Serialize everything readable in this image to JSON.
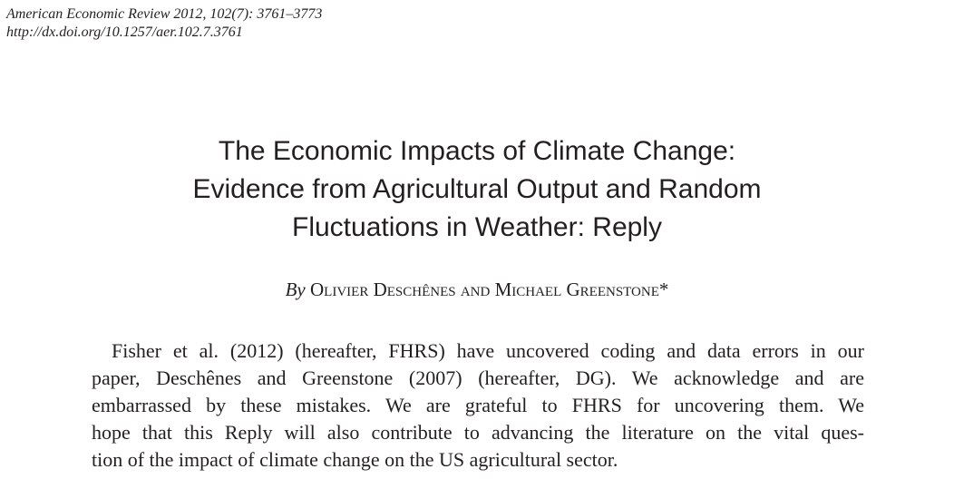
{
  "header": {
    "journal_line": "American Economic Review 2012, 102(7): 3761–3773",
    "doi_line": "http://dx.doi.org/10.1257/aer.102.7.3761"
  },
  "title": {
    "line1": "The Economic Impacts of Climate Change:",
    "line2": "Evidence from Agricultural Output and Random",
    "line3": "Fluctuations in Weather: Reply"
  },
  "byline": {
    "by": "By",
    "authors": "Olivier Deschênes and Michael Greenstone",
    "footnote_mark": "*"
  },
  "body": {
    "lines": [
      "Fisher et al. (2012) (hereafter, FHRS) have uncovered coding and data errors in our",
      "paper, Deschênes and Greenstone (2007) (hereafter, DG). We acknowledge and are",
      "embarrassed by these mistakes. We are grateful to FHRS for uncovering them. We",
      "hope that this Reply will also contribute to advancing the literature on the vital ques-",
      "tion of the impact of climate change on the US agricultural sector."
    ]
  }
}
